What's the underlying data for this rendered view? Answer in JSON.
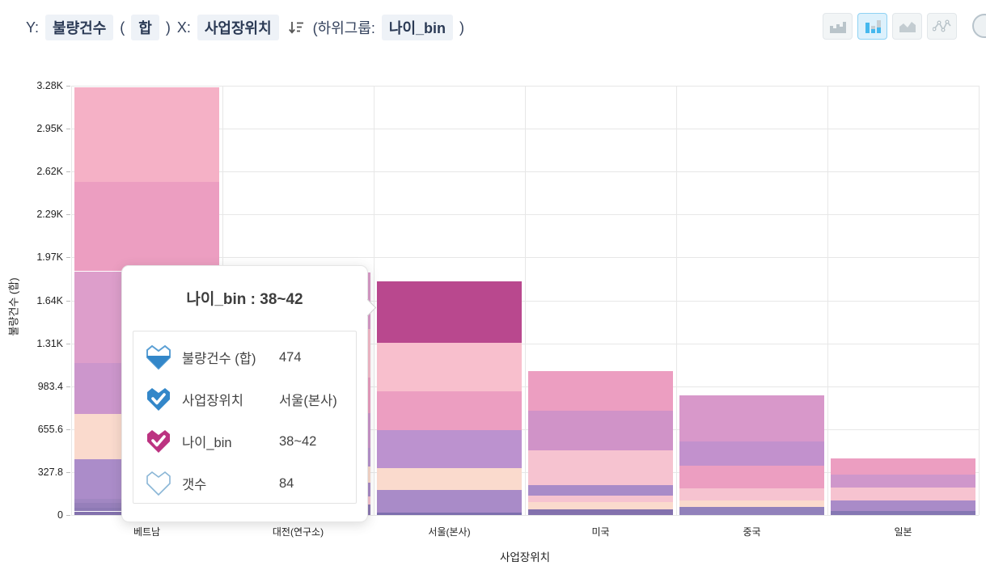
{
  "header": {
    "y_prefix": "Y:",
    "y_field": "불량건수",
    "paren_open": "(",
    "y_agg": "합",
    "paren_close": ")",
    "x_prefix": "X:",
    "x_field": "사업장위치",
    "subgroup_prefix": "(하위그룹:",
    "subgroup_field": "나이_bin",
    "subgroup_close": ")"
  },
  "toolbar": {
    "buttons": [
      {
        "name": "histogram-chart",
        "selected": false
      },
      {
        "name": "bar-chart",
        "selected": true
      },
      {
        "name": "area-chart",
        "selected": false
      },
      {
        "name": "line-chart",
        "selected": false
      }
    ],
    "selected_accent": "#45b8ee"
  },
  "chart_data": {
    "type": "bar",
    "stacked": true,
    "subgroup_field": "나이_bin",
    "xlabel": "사업장위치",
    "ylabel": "불량건수 (합)",
    "ylim": [
      0,
      3278
    ],
    "grid": true,
    "yticks": [
      {
        "label": "0",
        "value": 0
      },
      {
        "label": "327.8",
        "value": 327.8
      },
      {
        "label": "655.6",
        "value": 655.6
      },
      {
        "label": "983.4",
        "value": 983.4
      },
      {
        "label": "1.31K",
        "value": 1311.2
      },
      {
        "label": "1.64K",
        "value": 1639.0
      },
      {
        "label": "1.97K",
        "value": 1966.8
      },
      {
        "label": "2.29K",
        "value": 2294.6
      },
      {
        "label": "2.62K",
        "value": 2622.4
      },
      {
        "label": "2.95K",
        "value": 2950.2
      },
      {
        "label": "3.28K",
        "value": 3278
      }
    ],
    "categories": [
      "베트남",
      "대전(연구소)",
      "서울(본사)",
      "미국",
      "중국",
      "일본"
    ],
    "totals": [
      3266,
      1850,
      1787,
      1102,
      912,
      432
    ],
    "bars": [
      {
        "category": "베트남",
        "segments": [
          {
            "value": 28,
            "color": "#8371ad"
          },
          {
            "value": 30,
            "color": "#8d79b4"
          },
          {
            "value": 32,
            "color": "#967fba"
          },
          {
            "value": 33,
            "color": "#a187c2"
          },
          {
            "value": 302,
            "color": "#ab8cc9"
          },
          {
            "value": 345,
            "color": "#fadacd"
          },
          {
            "value": 388,
            "color": "#cc96cc"
          },
          {
            "value": 703,
            "color": "#dd9ecb"
          },
          {
            "value": 684,
            "color": "#ec9ec1"
          },
          {
            "value": 721,
            "color": "#f5b1c6"
          }
        ]
      },
      {
        "category": "대전(연구소)",
        "segments": [
          {
            "value": 80,
            "color": "#8d79b4"
          },
          {
            "value": 62,
            "color": "#f6c3d0"
          },
          {
            "value": 105,
            "color": "#a98bc8"
          },
          {
            "value": 123,
            "color": "#fadacd"
          },
          {
            "value": 142,
            "color": "#b893cf"
          },
          {
            "value": 265,
            "color": "#cc96cc"
          },
          {
            "value": 271,
            "color": "#ec9ec1"
          },
          {
            "value": 370,
            "color": "#f6bccb"
          },
          {
            "value": 432,
            "color": "#db9cca"
          }
        ]
      },
      {
        "category": "서울(본사)",
        "segments": [
          {
            "value": 18,
            "color": "#7d6fae"
          },
          {
            "value": 173,
            "color": "#a98bc8"
          },
          {
            "value": 166,
            "color": "#fadacd"
          },
          {
            "value": 290,
            "color": "#bc92cf"
          },
          {
            "value": 296,
            "color": "#ec9ec1"
          },
          {
            "value": 370,
            "color": "#f8bfcd"
          },
          {
            "value": 474,
            "color": "#b9488e",
            "highlighted": true,
            "subgroup": "38~42"
          }
        ]
      },
      {
        "category": "미국",
        "segments": [
          {
            "value": 43,
            "color": "#8371ad"
          },
          {
            "value": 55,
            "color": "#fadacd"
          },
          {
            "value": 49,
            "color": "#f6c3d0"
          },
          {
            "value": 80,
            "color": "#a98bc8"
          },
          {
            "value": 265,
            "color": "#f6c3d0"
          },
          {
            "value": 302,
            "color": "#d093c8"
          },
          {
            "value": 308,
            "color": "#ec9ec1"
          }
        ]
      },
      {
        "category": "중국",
        "segments": [
          {
            "value": 62,
            "color": "#9181bb"
          },
          {
            "value": 49,
            "color": "#fadacd"
          },
          {
            "value": 92,
            "color": "#f6c3d0"
          },
          {
            "value": 173,
            "color": "#ec9ec1"
          },
          {
            "value": 185,
            "color": "#c291cd"
          },
          {
            "value": 351,
            "color": "#d898ca"
          }
        ]
      },
      {
        "category": "일본",
        "segments": [
          {
            "value": 31,
            "color": "#8577b3"
          },
          {
            "value": 80,
            "color": "#a98bc8"
          },
          {
            "value": 99,
            "color": "#f6c3d0"
          },
          {
            "value": 99,
            "color": "#cf97cb"
          },
          {
            "value": 123,
            "color": "#ec9ec1"
          }
        ]
      }
    ]
  },
  "tooltip": {
    "title": "나이_bin : 38~42",
    "rows": [
      {
        "icon": "defect-sum-heart-icon",
        "style": "half",
        "color": "#3387c9",
        "label": "불량건수 (합)",
        "value": "474"
      },
      {
        "icon": "location-heart-check-icon",
        "style": "check",
        "color": "#3387c9",
        "label": "사업장위치",
        "value": "서울(본사)"
      },
      {
        "icon": "agebin-heart-check-icon",
        "style": "check",
        "color": "#bc3381",
        "label": "나이_bin",
        "value": "38~42"
      },
      {
        "icon": "count-heart-outline-icon",
        "style": "outline",
        "color": "#8ab6d6",
        "label": "갯수",
        "value": "84"
      }
    ]
  }
}
